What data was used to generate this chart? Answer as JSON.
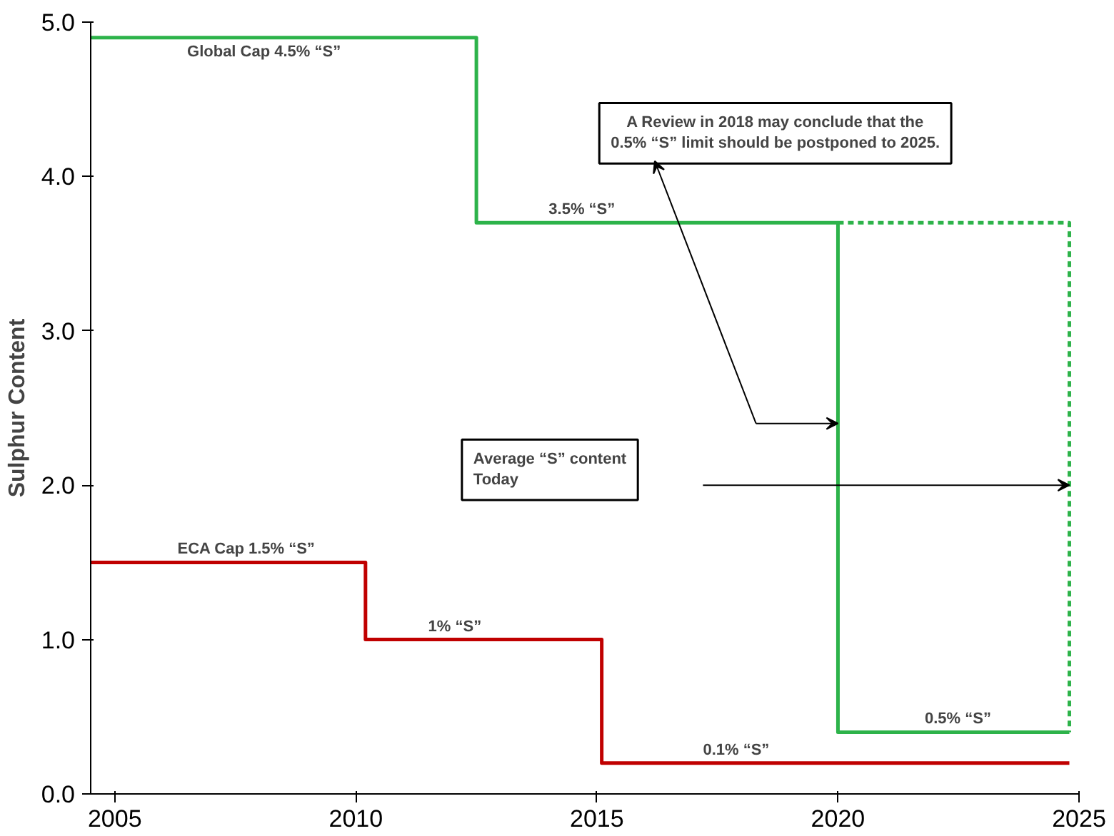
{
  "chart_data": {
    "type": "step",
    "ylabel": "Sulphur Content",
    "xlim": [
      2004.5,
      2025
    ],
    "ylim": [
      0,
      5
    ],
    "xticks": [
      2005,
      2010,
      2015,
      2020,
      2025
    ],
    "yticks": [
      {
        "value": 0,
        "label": "0.0"
      },
      {
        "value": 1,
        "label": "1.0"
      },
      {
        "value": 2,
        "label": "2.0"
      },
      {
        "value": 3,
        "label": "3.0"
      },
      {
        "value": 4,
        "label": "4.0"
      },
      {
        "value": 5,
        "label": "5.0"
      }
    ],
    "grid": false,
    "marker": "none",
    "series": [
      {
        "color": "#2db34a",
        "x": [
          2004.5,
          2012.5,
          2020,
          2024.8
        ],
        "values": [
          4.9,
          3.7,
          0.4,
          0.4
        ]
      },
      {
        "type": "line",
        "line_style": "dashed",
        "color": "#2db34a",
        "x": [
          2020,
          2024.8,
          2024.8
        ],
        "values": [
          3.7,
          3.7,
          0.4
        ]
      },
      {
        "color": "#c00000",
        "x": [
          2004.5,
          2010.2,
          2015.1,
          2024.8
        ],
        "values": [
          1.5,
          1.0,
          0.2,
          0.2
        ]
      }
    ],
    "annotations": [
      {
        "text": "Global Cap 4.5% “S”",
        "x": 2006.5,
        "y": 4.9
      },
      {
        "text": "3.5% “S”",
        "x": 2014,
        "y": 3.7
      },
      {
        "text": "0.5% “S”",
        "x": 2021.8,
        "y": 0.4
      },
      {
        "text": "ECA Cap 1.5% “S”",
        "x": 2006.3,
        "y": 1.5
      },
      {
        "text": "1% “S”",
        "x": 2011.5,
        "y": 1.0
      },
      {
        "text": "0.1% “S”",
        "x": 2017.2,
        "y": 0.2
      },
      "A Review in 2018 may conclude that the\n0.5% “S” limit should be postponed to 2025.",
      "Average “S” content\nToday"
    ]
  }
}
